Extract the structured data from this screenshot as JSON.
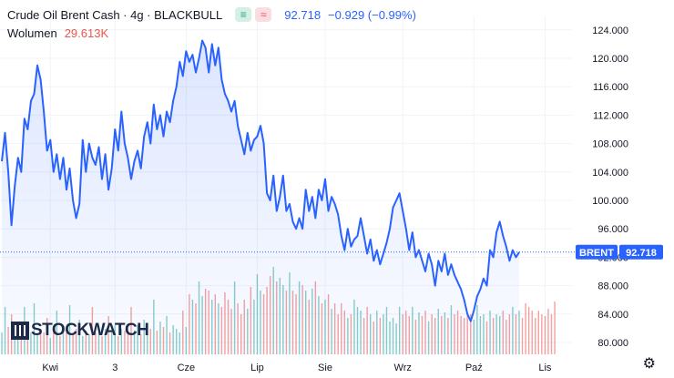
{
  "header": {
    "symbol": "Crude Oil Brent Cash · 4g · BLACKBULL",
    "badge_up": "≡",
    "badge_down": "≈",
    "price": "92.718",
    "change": "−0.929 (−0.99%)"
  },
  "volume": {
    "label": "Wolumen",
    "value": "29.613K"
  },
  "logo": {
    "text": "STOCKWATCH"
  },
  "colors": {
    "line": "#2962ff",
    "up": "#26a69a",
    "down": "#ef5350",
    "tag": "#2962ff"
  },
  "chart_data": {
    "type": "line",
    "ticker_tag": "BRENT",
    "last_value_label": "92.718",
    "last_value": 92.718,
    "ylim": [
      79,
      125.4
    ],
    "yticks": [
      80,
      84,
      88,
      92,
      96,
      100,
      104,
      108,
      112,
      116,
      120,
      124
    ],
    "ytick_labels": [
      "80.000",
      "84.000",
      "88.000",
      "92.000",
      "96.000",
      "100.000",
      "104.000",
      "108.000",
      "112.000",
      "116.000",
      "120.000",
      "124.000"
    ],
    "x_labels": [
      {
        "label": "Kwi",
        "i": 15
      },
      {
        "label": "3",
        "i": 35
      },
      {
        "label": "Cze",
        "i": 57
      },
      {
        "label": "Lip",
        "i": 79
      },
      {
        "label": "Sie",
        "i": 100
      },
      {
        "label": "Wrz",
        "i": 124
      },
      {
        "label": "Paź",
        "i": 146
      },
      {
        "label": "Lis",
        "i": 168
      }
    ],
    "n_slots": 174,
    "series": [
      {
        "values": [
          105.5,
          109.5,
          104.0,
          96.5,
          102.0,
          106.0,
          104.0,
          111.5,
          110.0,
          114.0,
          115.0,
          119.0,
          117.0,
          112.5,
          107.0,
          108.5,
          104.0,
          106.5,
          103.0,
          106.0,
          101.5,
          104.5,
          100.0,
          97.5,
          99.5,
          108.5,
          104.0,
          108.0,
          106.0,
          105.0,
          107.5,
          103.0,
          106.5,
          101.5,
          104.5,
          110.0,
          107.0,
          112.5,
          108.0,
          106.0,
          103.0,
          105.5,
          107.0,
          104.5,
          109.0,
          111.0,
          108.0,
          113.5,
          110.0,
          112.0,
          109.0,
          112.5,
          111.0,
          114.0,
          116.0,
          119.5,
          117.5,
          121.0,
          119.5,
          120.5,
          118.0,
          120.0,
          122.5,
          121.5,
          118.0,
          122.0,
          119.0,
          121.5,
          117.0,
          115.0,
          114.0,
          112.5,
          114.0,
          110.5,
          108.5,
          106.5,
          109.5,
          107.0,
          108.5,
          109.0,
          110.5,
          108.0,
          101.0,
          100.0,
          103.5,
          98.5,
          100.5,
          103.5,
          98.5,
          99.5,
          97.0,
          96.0,
          97.5,
          96.0,
          101.5,
          98.5,
          100.5,
          97.5,
          101.5,
          100.0,
          103.0,
          98.5,
          100.5,
          99.5,
          98.0,
          95.0,
          93.0,
          96.0,
          93.5,
          94.5,
          95.0,
          97.5,
          95.0,
          92.5,
          94.5,
          91.5,
          93.0,
          91.0,
          92.5,
          94.0,
          96.0,
          99.0,
          100.0,
          101.0,
          98.5,
          96.0,
          93.0,
          95.5,
          92.0,
          93.0,
          91.5,
          90.0,
          92.5,
          91.0,
          88.0,
          91.5,
          90.0,
          92.5,
          89.5,
          91.0,
          89.5,
          88.5,
          87.5,
          86.0,
          84.0,
          83.0,
          84.5,
          86.5,
          87.5,
          89.0,
          88.0,
          93.0,
          92.0,
          95.5,
          97.0,
          95.0,
          93.5,
          91.5,
          93.0,
          92.0,
          92.7
        ]
      }
    ],
    "volume_ylim": [
      0,
      55000
    ],
    "volume": [
      12000,
      26000,
      15000,
      22000,
      9000,
      18000,
      11000,
      26000,
      16000,
      12000,
      28000,
      11000,
      14000,
      12000,
      20000,
      9000,
      13000,
      24000,
      10000,
      15000,
      12000,
      27000,
      11000,
      14000,
      19000,
      10000,
      13000,
      11000,
      26000,
      12000,
      15000,
      10000,
      14000,
      21000,
      12000,
      16000,
      10000,
      14000,
      13000,
      12000,
      26000,
      13000,
      16000,
      11000,
      19000,
      12000,
      14000,
      30000,
      13000,
      18000,
      15000,
      21000,
      12000,
      16000,
      14000,
      12000,
      24000,
      15000,
      33000,
      30000,
      28000,
      40000,
      32000,
      36000,
      35000,
      30000,
      33000,
      28000,
      26000,
      34000,
      30000,
      25000,
      40000,
      28000,
      22000,
      30000,
      25000,
      37000,
      30000,
      44000,
      35000,
      33000,
      37000,
      43000,
      48000,
      40000,
      42000,
      38000,
      35000,
      45000,
      35000,
      33000,
      40000,
      38000,
      35000,
      30000,
      36000,
      40000,
      32000,
      28000,
      30000,
      33000,
      25000,
      28000,
      22000,
      28000,
      24000,
      20000,
      22000,
      30000,
      26000,
      24000,
      20000,
      26000,
      22000,
      18000,
      24000,
      20000,
      22000,
      26000,
      18000,
      20000,
      17000,
      26000,
      22000,
      24000,
      21000,
      26000,
      19000,
      23000,
      21000,
      24000,
      18000,
      22000,
      20000,
      25000,
      21000,
      23000,
      20000,
      27000,
      22000,
      24000,
      21000,
      20000,
      22000,
      22000,
      19000,
      27000,
      21000,
      22000,
      18000,
      24000,
      20000,
      22000,
      21000,
      24000,
      19000,
      22000,
      26000,
      22000,
      24000,
      20000,
      28000,
      26000,
      24000,
      20000,
      24000,
      22000,
      21000,
      25000,
      22000,
      29000
    ]
  }
}
